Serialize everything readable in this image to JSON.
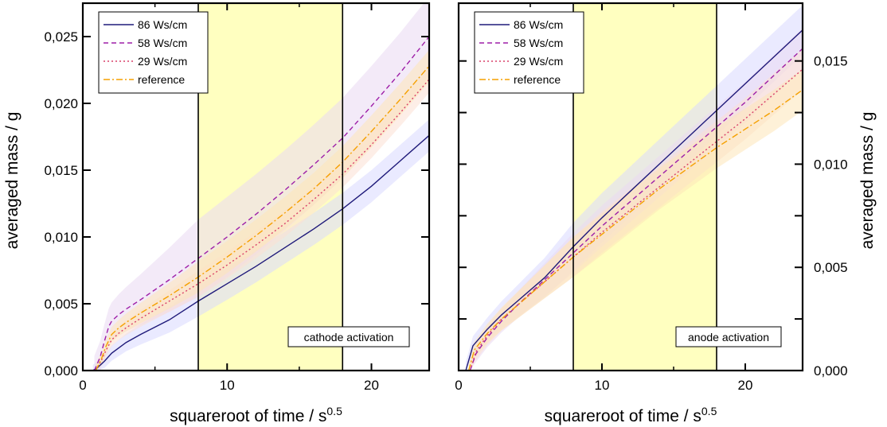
{
  "chart_data": [
    {
      "type": "line",
      "panel": "left",
      "xlabel": "squareroot of time / s",
      "xlabel_sup": "0.5",
      "ylabel": "averaged mass / g",
      "ylabel_side": "left",
      "xlim": [
        0,
        24
      ],
      "ylim": [
        0,
        0.0275
      ],
      "xticks": [
        0,
        10,
        20
      ],
      "xtick_labels": [
        "0",
        "10",
        "20"
      ],
      "yticks": [
        0,
        0.005,
        0.01,
        0.015,
        0.02,
        0.025
      ],
      "ytick_labels": [
        "0,000",
        "0,005",
        "0,010",
        "0,015",
        "0,020",
        "0,025"
      ],
      "highlight": {
        "x_range": [
          8,
          18
        ],
        "color": "#ffffc0"
      },
      "annotation": "cathode activation",
      "legend_position": "top-left",
      "series": [
        {
          "name": "86 Ws/cm",
          "color": "#1f1a7a",
          "dash": "solid",
          "band_color": "#d8d8ff",
          "band": 0.0012,
          "x": [
            0.7,
            1.0,
            1.5,
            2.0,
            2.5,
            3,
            4,
            6,
            8,
            10,
            12,
            14,
            16,
            18,
            20,
            22,
            24
          ],
          "y": [
            0.0,
            0.0002,
            0.0007,
            0.0013,
            0.0017,
            0.0021,
            0.0027,
            0.0038,
            0.0052,
            0.0065,
            0.0078,
            0.0092,
            0.0106,
            0.0121,
            0.0138,
            0.0157,
            0.0176
          ]
        },
        {
          "name": "58 Ws/cm",
          "color": "#9e1fa8",
          "dash": "6,4",
          "band_color": "#ead8f2",
          "band": 0.003,
          "x": [
            0.8,
            1.2,
            1.5,
            1.8,
            2.0,
            2.5,
            3,
            4,
            6,
            8,
            10,
            12,
            14,
            16,
            18,
            20,
            22,
            24
          ],
          "y": [
            0.0,
            0.001,
            0.0022,
            0.0033,
            0.0037,
            0.0042,
            0.0046,
            0.0053,
            0.0068,
            0.0084,
            0.01,
            0.0117,
            0.0135,
            0.0154,
            0.0174,
            0.0198,
            0.0223,
            0.025
          ]
        },
        {
          "name": "29 Ws/cm",
          "color": "#d9406a",
          "dash": "2,3",
          "band_color": "#fbe0d4",
          "band": 0.001,
          "x": [
            0.9,
            1.3,
            1.6,
            2.0,
            2.5,
            3,
            4,
            6,
            8,
            10,
            12,
            14,
            16,
            18,
            20,
            22,
            24
          ],
          "y": [
            0.0,
            0.0008,
            0.0015,
            0.0023,
            0.0028,
            0.0032,
            0.0039,
            0.0052,
            0.0065,
            0.0079,
            0.0094,
            0.011,
            0.0128,
            0.0147,
            0.0169,
            0.0193,
            0.0218
          ]
        },
        {
          "name": "reference",
          "color": "#f5a000",
          "dash": "8,3,2,3",
          "band_color": "#fde6b8",
          "band": 0.0012,
          "x": [
            0.9,
            1.3,
            1.6,
            2.0,
            2.5,
            3,
            4,
            6,
            8,
            10,
            12,
            14,
            16,
            18,
            20,
            22,
            24
          ],
          "y": [
            0.0,
            0.0009,
            0.0018,
            0.0027,
            0.0032,
            0.0036,
            0.0043,
            0.0056,
            0.007,
            0.0085,
            0.0101,
            0.0118,
            0.0136,
            0.0156,
            0.0179,
            0.0203,
            0.0228
          ]
        }
      ]
    },
    {
      "type": "line",
      "panel": "right",
      "xlabel": "squareroot of time / s",
      "xlabel_sup": "0.5",
      "ylabel": "averaged mass / g",
      "ylabel_side": "right",
      "xlim": [
        0,
        24
      ],
      "ylim": [
        0,
        0.0178
      ],
      "xticks": [
        0,
        10,
        20
      ],
      "xtick_labels": [
        "0",
        "10",
        "20"
      ],
      "yticks": [
        0,
        0.005,
        0.01,
        0.015
      ],
      "ytick_labels": [
        "0,000",
        "0,005",
        "0,010",
        "0,015"
      ],
      "yminor": [
        0.0025,
        0.0075,
        0.0125
      ],
      "highlight": {
        "x_range": [
          8,
          18
        ],
        "color": "#ffffc0"
      },
      "annotation": "anode activation",
      "legend_position": "top-left",
      "series": [
        {
          "name": "86 Ws/cm",
          "color": "#1f1a7a",
          "dash": "solid",
          "band_color": "#d8d8ff",
          "band": 0.0012,
          "x": [
            0.5,
            1.0,
            2,
            3,
            4,
            6,
            8,
            10,
            12,
            14,
            16,
            18,
            20,
            22,
            24
          ],
          "y": [
            0.0,
            0.0012,
            0.002,
            0.0027,
            0.0033,
            0.0045,
            0.006,
            0.0074,
            0.0087,
            0.01,
            0.0113,
            0.0126,
            0.0139,
            0.0152,
            0.0165
          ]
        },
        {
          "name": "58 Ws/cm",
          "color": "#9e1fa8",
          "dash": "6,4",
          "band_color": "#ead8f2",
          "band": 0.001,
          "x": [
            0.8,
            1.2,
            2,
            3,
            4,
            6,
            8,
            10,
            12,
            14,
            16,
            18,
            20,
            22,
            24
          ],
          "y": [
            0.0,
            0.0008,
            0.0016,
            0.0024,
            0.0031,
            0.0044,
            0.0057,
            0.007,
            0.0082,
            0.0094,
            0.0106,
            0.0118,
            0.013,
            0.0143,
            0.0156
          ]
        },
        {
          "name": "29 Ws/cm",
          "color": "#d9406a",
          "dash": "2,3",
          "band_color": "#fbe0d4",
          "band": 0.001,
          "x": [
            0.8,
            1.2,
            2,
            3,
            4,
            6,
            8,
            10,
            12,
            14,
            16,
            18,
            20,
            22,
            24
          ],
          "y": [
            0.0,
            0.0009,
            0.0017,
            0.0025,
            0.0031,
            0.0043,
            0.0055,
            0.0067,
            0.0078,
            0.0089,
            0.01,
            0.0111,
            0.0122,
            0.0134,
            0.0146
          ]
        },
        {
          "name": "reference",
          "color": "#f5a000",
          "dash": "8,3,2,3",
          "band_color": "#fde6b8",
          "band": 0.001,
          "x": [
            0.7,
            1.1,
            2,
            3,
            4,
            6,
            8,
            10,
            12,
            14,
            16,
            18,
            20,
            22,
            24
          ],
          "y": [
            0.0,
            0.001,
            0.0018,
            0.0025,
            0.0031,
            0.0043,
            0.0055,
            0.0066,
            0.0077,
            0.0088,
            0.0098,
            0.0108,
            0.0117,
            0.0126,
            0.0136
          ]
        }
      ]
    }
  ]
}
